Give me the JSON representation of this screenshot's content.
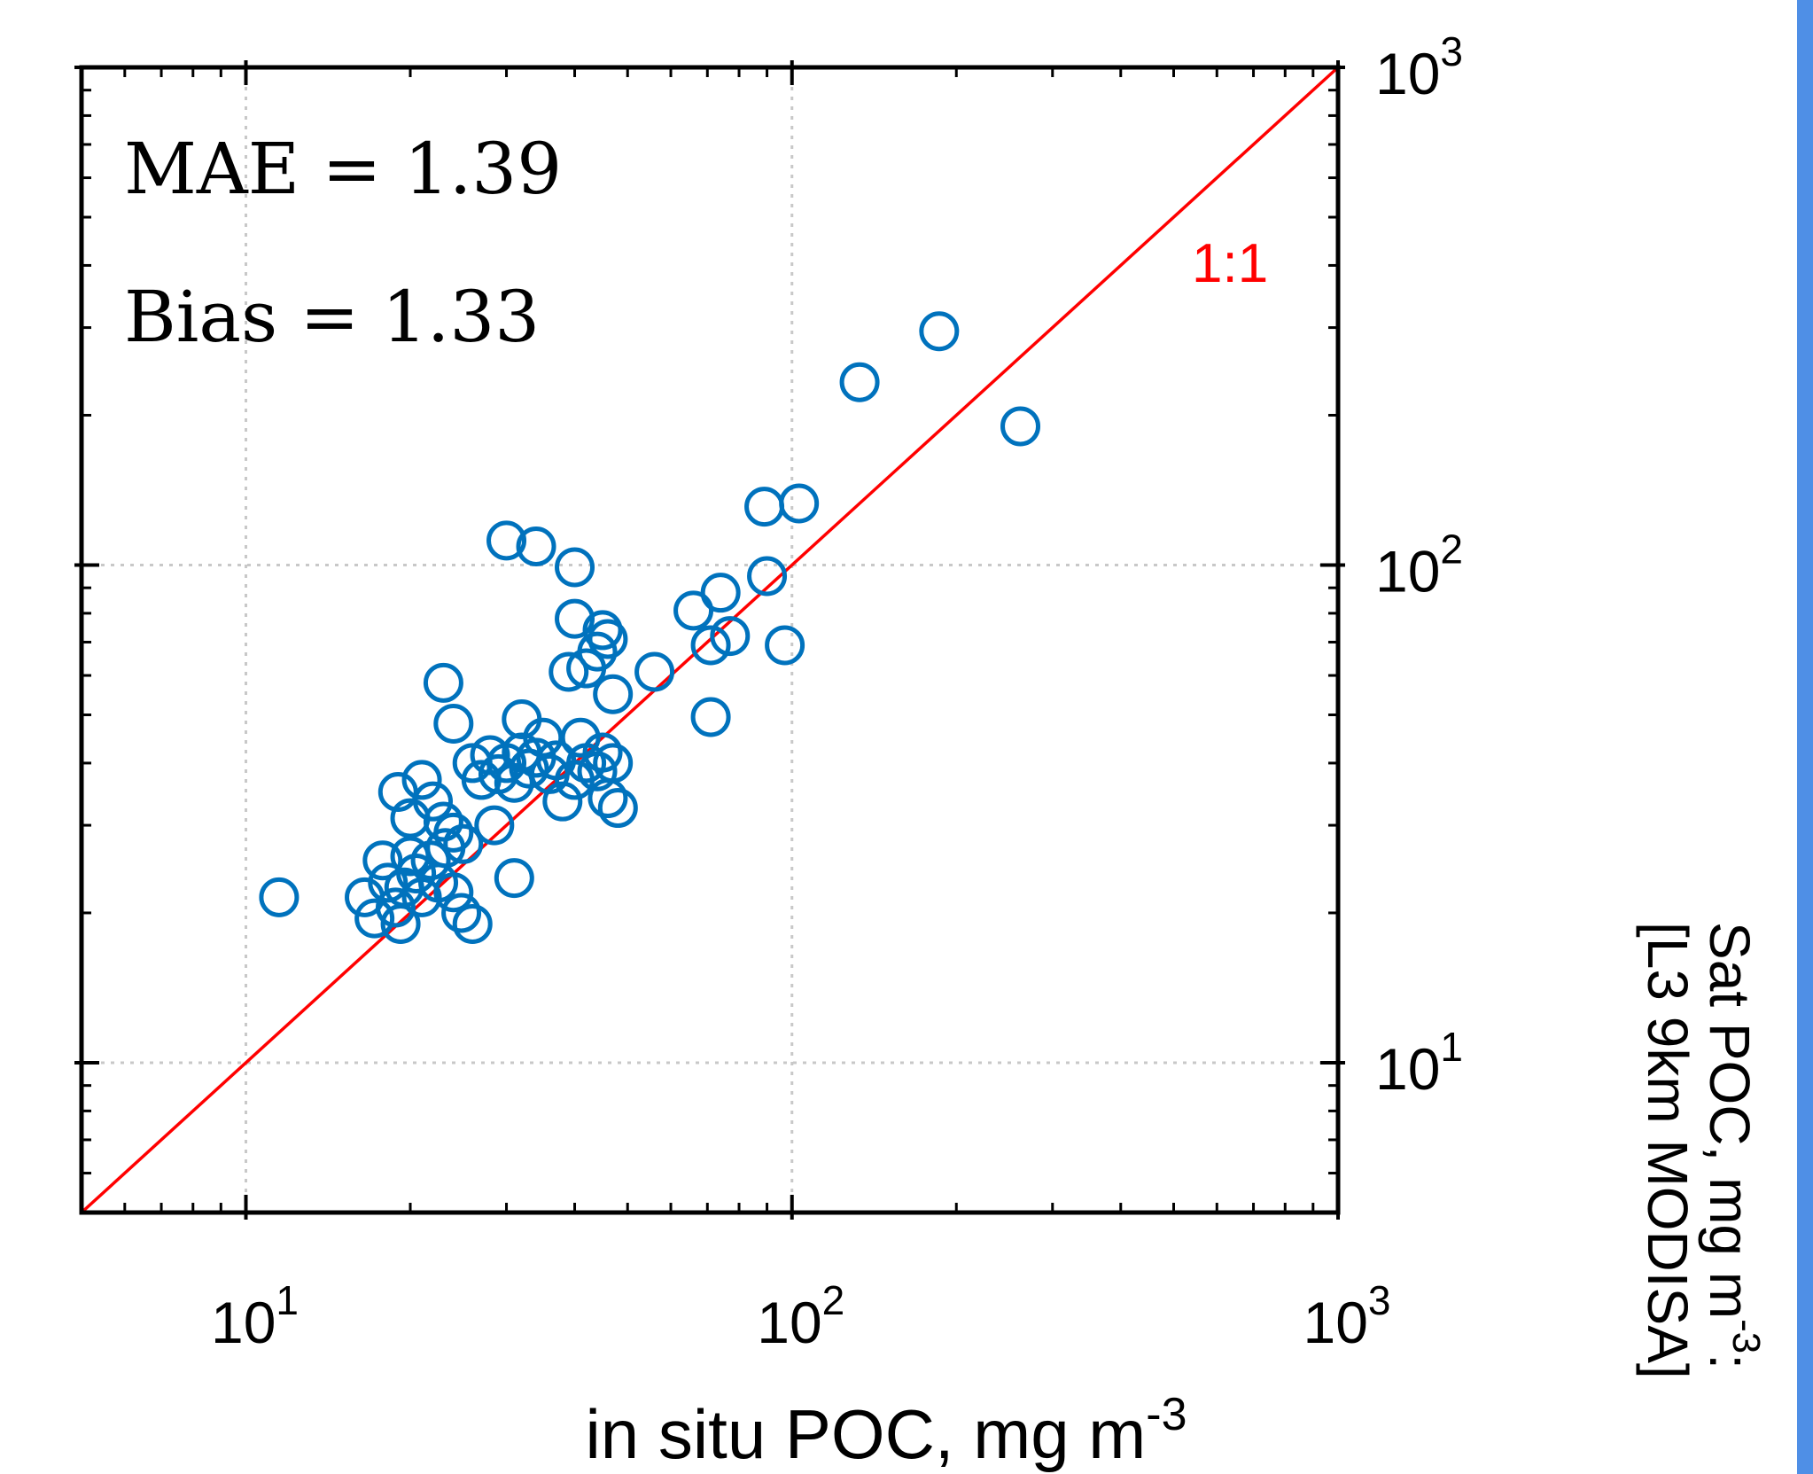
{
  "colors": {
    "marker": "#0072bd",
    "reference_line": "#ff0000",
    "axes": "#000000",
    "grid": "#c8c8c8",
    "right_strip": "#4f8fe6"
  },
  "stats": {
    "mae_text": "MAE = 1.39",
    "bias_text": "Bias = 1.33"
  },
  "reference_label": "1:1",
  "chart_data": {
    "type": "scatter",
    "xlabel": "in situ POC, mg m",
    "xlabel_sup": "-3",
    "ylabel_line1": "Sat POC, mg m",
    "ylabel_sup": "-3",
    "ylabel_line1_end": ":",
    "ylabel_line2": "[L3 9km MODISA]",
    "xscale": "log",
    "yscale": "log",
    "xlim": [
      5,
      1000
    ],
    "ylim": [
      5,
      1000
    ],
    "grid": true,
    "y_axis_side": "right",
    "x_ticks": [
      {
        "value": 10,
        "base": "10",
        "exp": "1"
      },
      {
        "value": 100,
        "base": "10",
        "exp": "2"
      },
      {
        "value": 1000,
        "base": "10",
        "exp": "3"
      }
    ],
    "y_ticks": [
      {
        "value": 10,
        "base": "10",
        "exp": "1"
      },
      {
        "value": 100,
        "base": "10",
        "exp": "2"
      },
      {
        "value": 1000,
        "base": "10",
        "exp": "3"
      }
    ],
    "reference_line": {
      "name": "1:1",
      "x": [
        5,
        1000
      ],
      "y": [
        5,
        1000
      ]
    },
    "points": [
      {
        "x": 11.5,
        "y": 21.5
      },
      {
        "x": 16.5,
        "y": 21.5
      },
      {
        "x": 17.2,
        "y": 19.5
      },
      {
        "x": 17.8,
        "y": 25.5
      },
      {
        "x": 18.2,
        "y": 23.0
      },
      {
        "x": 18.8,
        "y": 20.5
      },
      {
        "x": 19.2,
        "y": 19.0
      },
      {
        "x": 19.5,
        "y": 22.5
      },
      {
        "x": 20.0,
        "y": 26.0
      },
      {
        "x": 20.5,
        "y": 24.0
      },
      {
        "x": 21.0,
        "y": 21.5
      },
      {
        "x": 21.8,
        "y": 25.5
      },
      {
        "x": 22.5,
        "y": 23.0
      },
      {
        "x": 23.2,
        "y": 27.0
      },
      {
        "x": 24.0,
        "y": 22.0
      },
      {
        "x": 24.8,
        "y": 20.0
      },
      {
        "x": 26.0,
        "y": 19.0
      },
      {
        "x": 19.0,
        "y": 35.0
      },
      {
        "x": 21.0,
        "y": 37.0
      },
      {
        "x": 20.0,
        "y": 31.0
      },
      {
        "x": 22.0,
        "y": 33.5
      },
      {
        "x": 23.0,
        "y": 30.5
      },
      {
        "x": 24.0,
        "y": 29.0
      },
      {
        "x": 25.0,
        "y": 27.5
      },
      {
        "x": 23.0,
        "y": 58.0
      },
      {
        "x": 24.0,
        "y": 48.0
      },
      {
        "x": 26.0,
        "y": 40.0
      },
      {
        "x": 27.0,
        "y": 37.0
      },
      {
        "x": 28.0,
        "y": 41.5
      },
      {
        "x": 29.0,
        "y": 38.0
      },
      {
        "x": 30.0,
        "y": 40.0
      },
      {
        "x": 31.0,
        "y": 36.5
      },
      {
        "x": 32.0,
        "y": 42.0
      },
      {
        "x": 32.0,
        "y": 49.0
      },
      {
        "x": 33.0,
        "y": 39.0
      },
      {
        "x": 34.0,
        "y": 41.0
      },
      {
        "x": 35.0,
        "y": 45.0
      },
      {
        "x": 36.0,
        "y": 38.0
      },
      {
        "x": 37.0,
        "y": 40.5
      },
      {
        "x": 38.0,
        "y": 33.5
      },
      {
        "x": 40.0,
        "y": 37.0
      },
      {
        "x": 41.0,
        "y": 45.0
      },
      {
        "x": 42.0,
        "y": 40.0
      },
      {
        "x": 44.0,
        "y": 38.5
      },
      {
        "x": 45.0,
        "y": 42.0
      },
      {
        "x": 46.0,
        "y": 34.0
      },
      {
        "x": 47.0,
        "y": 40.0
      },
      {
        "x": 48.0,
        "y": 32.5
      },
      {
        "x": 28.5,
        "y": 30.0
      },
      {
        "x": 31.0,
        "y": 23.5
      },
      {
        "x": 39.0,
        "y": 61.0
      },
      {
        "x": 42.0,
        "y": 62.0
      },
      {
        "x": 44.0,
        "y": 67.0
      },
      {
        "x": 40.0,
        "y": 78.0
      },
      {
        "x": 45.0,
        "y": 74.0
      },
      {
        "x": 46.0,
        "y": 71.0
      },
      {
        "x": 47.0,
        "y": 55.0
      },
      {
        "x": 56.0,
        "y": 61.0
      },
      {
        "x": 30.0,
        "y": 112.0
      },
      {
        "x": 34.0,
        "y": 109.0
      },
      {
        "x": 40.0,
        "y": 99.0
      },
      {
        "x": 66.0,
        "y": 81.0
      },
      {
        "x": 71.0,
        "y": 69.0
      },
      {
        "x": 74.0,
        "y": 88.0
      },
      {
        "x": 77.0,
        "y": 72.0
      },
      {
        "x": 71.0,
        "y": 49.5
      },
      {
        "x": 90.0,
        "y": 95.0
      },
      {
        "x": 97.0,
        "y": 69.0
      },
      {
        "x": 89.0,
        "y": 131.0
      },
      {
        "x": 103.0,
        "y": 133.0
      },
      {
        "x": 133.0,
        "y": 233.0
      },
      {
        "x": 186.0,
        "y": 295.0
      },
      {
        "x": 262.0,
        "y": 190.0
      }
    ]
  }
}
